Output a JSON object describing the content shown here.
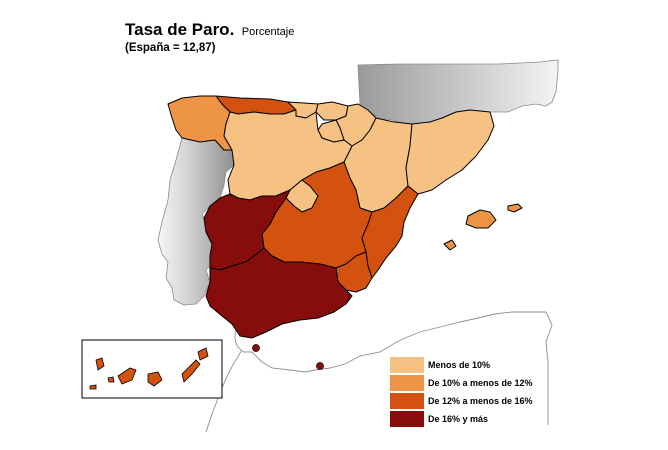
{
  "title": {
    "main": "Tasa de Paro.",
    "unit": "Porcentaje",
    "subtitle": "(España = 12,87)"
  },
  "legend": [
    {
      "label": "Menos de 10%",
      "color": "#f5c283"
    },
    {
      "label": "De 10% a menos de 12%",
      "color": "#ee9445"
    },
    {
      "label": "De 12% a menos de 16%",
      "color": "#d4520f"
    },
    {
      "label": "De 16% y más",
      "color": "#870d0d"
    }
  ],
  "regions": [
    {
      "name": "Galicia",
      "category": 1
    },
    {
      "name": "Asturias",
      "category": 2
    },
    {
      "name": "Cantabria",
      "category": 0
    },
    {
      "name": "País Vasco",
      "category": 0
    },
    {
      "name": "Navarra",
      "category": 0
    },
    {
      "name": "La Rioja",
      "category": 0
    },
    {
      "name": "Aragón",
      "category": 0
    },
    {
      "name": "Cataluña",
      "category": 0
    },
    {
      "name": "Castilla y León",
      "category": 0
    },
    {
      "name": "Madrid",
      "category": 0
    },
    {
      "name": "Castilla-La Mancha",
      "category": 2
    },
    {
      "name": "Comunidad Valenciana",
      "category": 2
    },
    {
      "name": "Región de Murcia",
      "category": 2
    },
    {
      "name": "Extremadura",
      "category": 3
    },
    {
      "name": "Andalucía",
      "category": 3
    },
    {
      "name": "Illes Balears",
      "category": 1
    },
    {
      "name": "Canarias",
      "category": 2
    },
    {
      "name": "Ceuta",
      "category": 3
    },
    {
      "name": "Melilla",
      "category": 3
    }
  ]
}
